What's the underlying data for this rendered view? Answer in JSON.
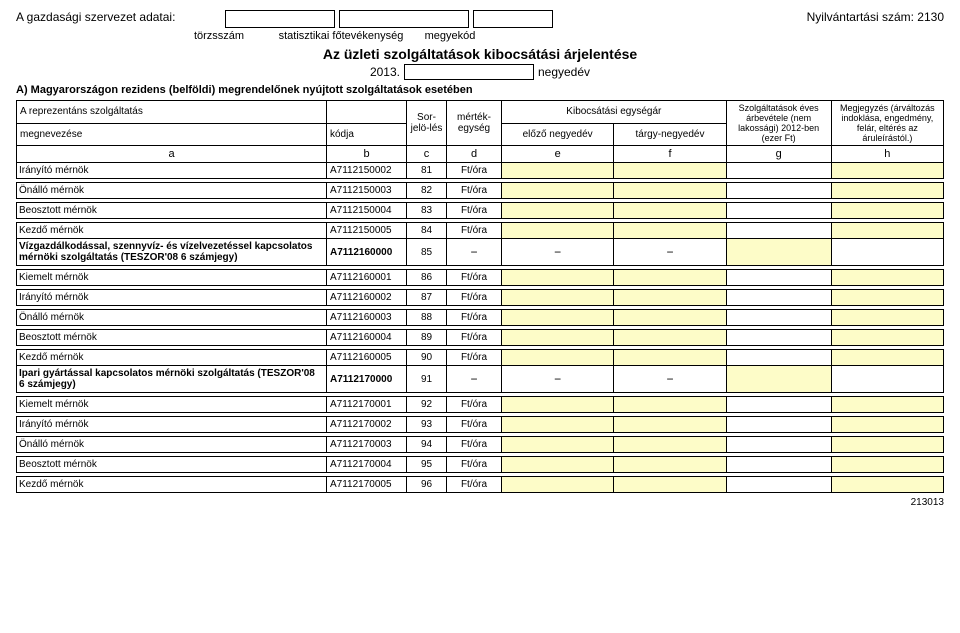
{
  "header": {
    "org_label": "A gazdasági szervezet adatai:",
    "box_labels": [
      "törzsszám",
      "statisztikai főtevékenység",
      "megyekód"
    ],
    "reg_num": "Nyilvántartási szám: 2130",
    "title": "Az üzleti szolgáltatások kibocsátási árjelentése",
    "year": "2013.",
    "quarter": "negyedév",
    "section_a": "A) Magyarországon rezidens (belföldi) megrendelőnek nyújtott szolgáltatások esetében"
  },
  "columns": {
    "rep_service": "A reprezentáns szolgáltatás",
    "megnevezese": "megnevezése",
    "kodja": "kódja",
    "sor": "Sor-jelö-lés",
    "mertek": "mérték-egység",
    "kibo": "Kibocsátási egységár",
    "elozo": "előző negyedév",
    "targy": "tárgy-negyedév",
    "szolg": "Szolgáltatások éves árbevétele (nem lakossági) 2012-ben (ezer Ft)",
    "megj": "Megjegyzés (árváltozás indoklása, engedmény, felár, eltérés az áruleírástól.)",
    "letters": [
      "a",
      "b",
      "c",
      "d",
      "e",
      "f",
      "g",
      "h"
    ]
  },
  "rows": [
    {
      "name": "Irányító mérnök",
      "code": "A7112150002",
      "sor": "81",
      "unit": "Ft/óra",
      "type": "data"
    },
    {
      "name": "Önálló mérnök",
      "code": "A7112150003",
      "sor": "82",
      "unit": "Ft/óra",
      "type": "data"
    },
    {
      "name": "Beosztott mérnök",
      "code": "A7112150004",
      "sor": "83",
      "unit": "Ft/óra",
      "type": "data"
    },
    {
      "name": "Kezdő mérnök",
      "code": "A7112150005",
      "sor": "84",
      "unit": "Ft/óra",
      "type": "data"
    },
    {
      "name": "Vízgazdálkodással, szennyvíz- és vízelvezetéssel kapcsolatos mérnöki szolgáltatás (TESZOR'08 6 számjegy)",
      "code": "A7112160000",
      "sor": "85",
      "unit": "",
      "type": "group"
    },
    {
      "name": "Kiemelt mérnök",
      "code": "A7112160001",
      "sor": "86",
      "unit": "Ft/óra",
      "type": "data"
    },
    {
      "name": "Irányító mérnök",
      "code": "A7112160002",
      "sor": "87",
      "unit": "Ft/óra",
      "type": "data"
    },
    {
      "name": "Önálló mérnök",
      "code": "A7112160003",
      "sor": "88",
      "unit": "Ft/óra",
      "type": "data"
    },
    {
      "name": "Beosztott mérnök",
      "code": "A7112160004",
      "sor": "89",
      "unit": "Ft/óra",
      "type": "data"
    },
    {
      "name": "Kezdő mérnök",
      "code": "A7112160005",
      "sor": "90",
      "unit": "Ft/óra",
      "type": "data"
    },
    {
      "name": "Ipari gyártással kapcsolatos mérnöki szolgáltatás (TESZOR'08 6 számjegy)",
      "code": "A7112170000",
      "sor": "91",
      "unit": "",
      "type": "group"
    },
    {
      "name": "Kiemelt mérnök",
      "code": "A7112170001",
      "sor": "92",
      "unit": "Ft/óra",
      "type": "data"
    },
    {
      "name": "Irányító mérnök",
      "code": "A7112170002",
      "sor": "93",
      "unit": "Ft/óra",
      "type": "data"
    },
    {
      "name": "Önálló mérnök",
      "code": "A7112170003",
      "sor": "94",
      "unit": "Ft/óra",
      "type": "data"
    },
    {
      "name": "Beosztott mérnök",
      "code": "A7112170004",
      "sor": "95",
      "unit": "Ft/óra",
      "type": "data"
    },
    {
      "name": "Kezdő mérnök",
      "code": "A7112170005",
      "sor": "96",
      "unit": "Ft/óra",
      "type": "data"
    }
  ],
  "footer": "213013",
  "colors": {
    "yellow": "#fdfcc8",
    "border": "#000000",
    "bg": "#ffffff"
  }
}
